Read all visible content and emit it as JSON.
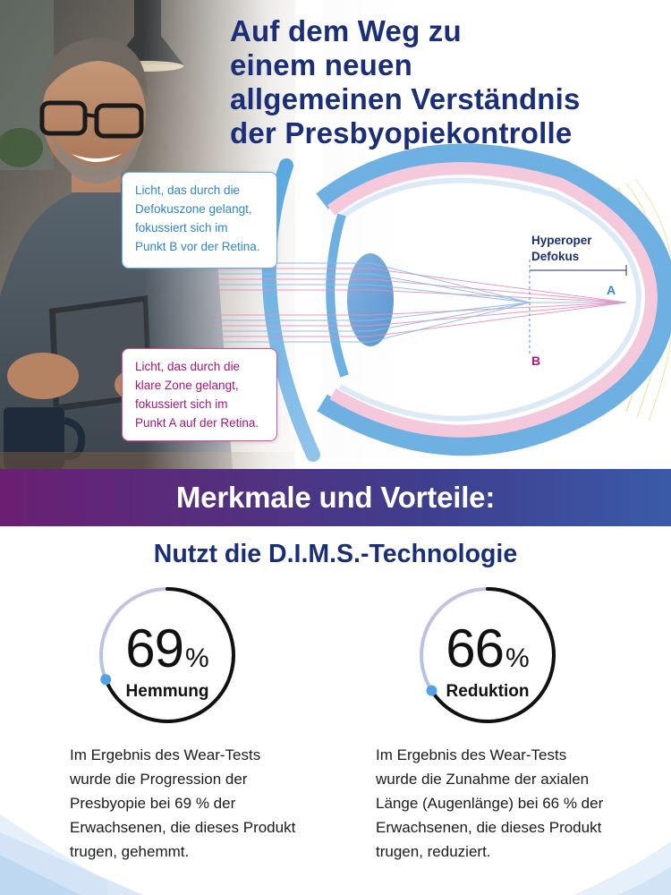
{
  "headline": [
    "Auf dem Weg zu",
    "einem neuen",
    "allgemeinen Verständnis",
    "der Presbyopiekontrolle"
  ],
  "callout_defocus": [
    "Licht, das durch die",
    "Defokuszone gelangt,",
    "fokussiert sich im",
    "Punkt B vor der Retina."
  ],
  "callout_clear": [
    "Licht, das durch die",
    "klare Zone gelangt,",
    "fokussiert sich im",
    "Punkt A auf der Retina."
  ],
  "diagram": {
    "hyperopic_label": [
      "Hyperoper",
      "Defokus"
    ],
    "point_a": "A",
    "point_b": "B"
  },
  "banner_title": "Merkmale und Vorteile:",
  "section_title": "Nutzt die D.I.M.S.-Technologie",
  "stats": [
    {
      "value": "69",
      "unit": "%",
      "label": "Hemmung",
      "fraction": 0.69
    },
    {
      "value": "66",
      "unit": "%",
      "label": "Reduktion",
      "fraction": 0.66
    }
  ],
  "descriptions": [
    [
      "Im Ergebnis des Wear-Tests",
      "wurde die Progression der",
      "Presbyopie bei 69 % der",
      "Erwachsenen, die dieses Produkt",
      "trugen, gehemmt."
    ],
    [
      "Im Ergebnis des Wear-Tests",
      "wurde die Zunahme der axialen",
      "Länge (Augenlänge) bei 66 % der",
      "Erwachsenen, die dieses Produkt",
      "trugen, reduziert."
    ]
  ],
  "colors": {
    "navy": "#1a2f78",
    "blue": "#2e8ed6",
    "magenta": "#b0197e",
    "ring_dark": "#111111",
    "ring_light": "#c9c2dc",
    "ring_dot": "#4fa3e6"
  }
}
